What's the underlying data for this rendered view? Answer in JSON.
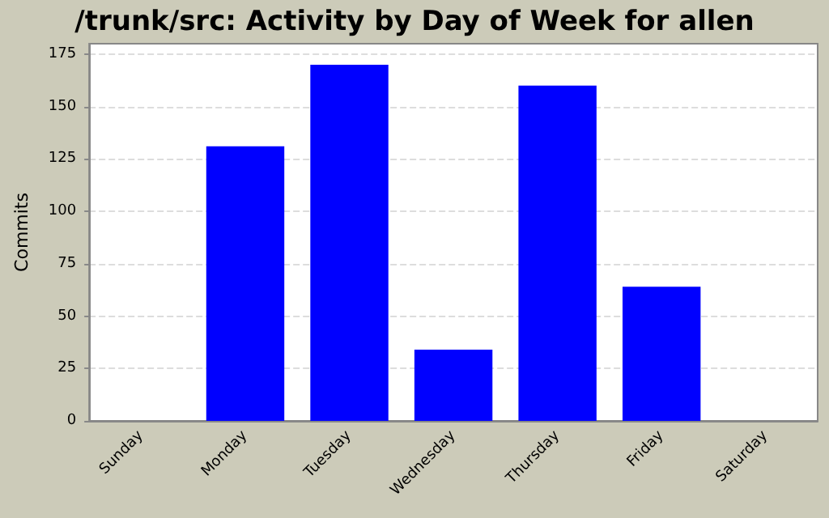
{
  "chart_data": {
    "type": "bar",
    "title": "/trunk/src: Activity by Day of Week for allen",
    "ylabel": "Commits",
    "categories": [
      "Sunday",
      "Monday",
      "Tuesday",
      "Wednesday",
      "Thursday",
      "Friday",
      "Saturday"
    ],
    "values": [
      0,
      131,
      170,
      34,
      160,
      64,
      0
    ],
    "color": "#0000ff",
    "ylim": [
      0,
      180
    ],
    "yticks": [
      0,
      25,
      50,
      75,
      100,
      125,
      150,
      175
    ],
    "grid": "y"
  }
}
